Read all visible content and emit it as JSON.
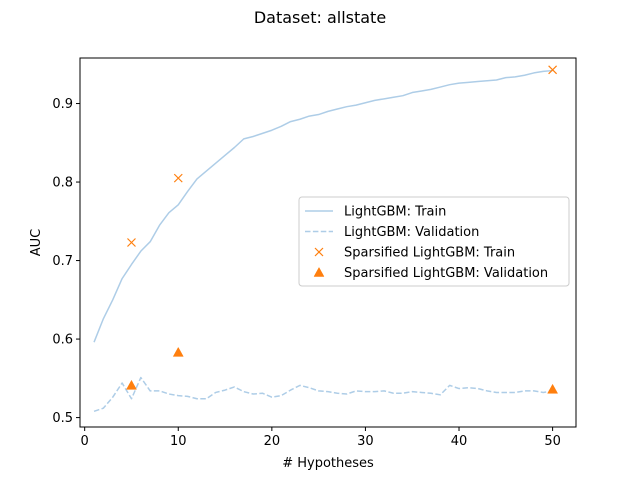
{
  "chart_data": {
    "type": "line",
    "title": "Dataset: allstate",
    "xlabel": "# Hypotheses",
    "ylabel": "AUC",
    "xlim": [
      -0.5,
      52.5
    ],
    "ylim": [
      0.488,
      0.958
    ],
    "xticks": [
      0,
      10,
      20,
      30,
      40,
      50
    ],
    "yticks": [
      0.5,
      0.6,
      0.7,
      0.8,
      0.9
    ],
    "xtick_labels": [
      "0",
      "10",
      "20",
      "30",
      "40",
      "50"
    ],
    "ytick_labels": [
      "0.5",
      "0.6",
      "0.7",
      "0.8",
      "0.9"
    ],
    "grid": false,
    "legend_position": "center-right",
    "series": [
      {
        "name": "LightGBM: Train",
        "kind": "line",
        "style": "solid",
        "color": "#aecde7",
        "x": [
          1,
          2,
          3,
          4,
          5,
          6,
          7,
          8,
          9,
          10,
          11,
          12,
          13,
          14,
          15,
          16,
          17,
          18,
          19,
          20,
          21,
          22,
          23,
          24,
          25,
          26,
          27,
          28,
          29,
          30,
          31,
          32,
          33,
          34,
          35,
          36,
          37,
          38,
          39,
          40,
          41,
          42,
          43,
          44,
          45,
          46,
          47,
          48,
          49,
          50
        ],
        "y": [
          0.596,
          0.626,
          0.65,
          0.677,
          0.695,
          0.712,
          0.724,
          0.745,
          0.761,
          0.771,
          0.788,
          0.804,
          0.814,
          0.824,
          0.834,
          0.844,
          0.855,
          0.858,
          0.862,
          0.866,
          0.871,
          0.877,
          0.88,
          0.884,
          0.886,
          0.89,
          0.893,
          0.896,
          0.898,
          0.901,
          0.904,
          0.906,
          0.908,
          0.91,
          0.914,
          0.916,
          0.918,
          0.921,
          0.924,
          0.926,
          0.927,
          0.928,
          0.929,
          0.93,
          0.933,
          0.934,
          0.936,
          0.939,
          0.941,
          0.942
        ]
      },
      {
        "name": "LightGBM: Validation",
        "kind": "line",
        "style": "dashed",
        "color": "#aecde7",
        "x": [
          1,
          2,
          3,
          4,
          5,
          6,
          7,
          8,
          9,
          10,
          11,
          12,
          13,
          14,
          15,
          16,
          17,
          18,
          19,
          20,
          21,
          22,
          23,
          24,
          25,
          26,
          27,
          28,
          29,
          30,
          31,
          32,
          33,
          34,
          35,
          36,
          37,
          38,
          39,
          40,
          41,
          42,
          43,
          44,
          45,
          46,
          47,
          48,
          49,
          50
        ],
        "y": [
          0.508,
          0.512,
          0.526,
          0.544,
          0.524,
          0.551,
          0.534,
          0.534,
          0.53,
          0.528,
          0.527,
          0.524,
          0.524,
          0.532,
          0.535,
          0.539,
          0.533,
          0.53,
          0.531,
          0.526,
          0.528,
          0.535,
          0.541,
          0.538,
          0.534,
          0.533,
          0.531,
          0.53,
          0.534,
          0.533,
          0.533,
          0.534,
          0.531,
          0.531,
          0.533,
          0.532,
          0.531,
          0.529,
          0.541,
          0.537,
          0.538,
          0.537,
          0.534,
          0.532,
          0.532,
          0.532,
          0.534,
          0.534,
          0.532,
          0.534
        ]
      },
      {
        "name": "Sparsified LightGBM: Train",
        "kind": "marker",
        "marker": "x",
        "color": "#ff7f0e",
        "x": [
          5,
          10,
          50
        ],
        "y": [
          0.723,
          0.805,
          0.943
        ]
      },
      {
        "name": "Sparsified LightGBM: Validation",
        "kind": "marker",
        "marker": "triangle",
        "color": "#ff7f0e",
        "x": [
          5,
          10,
          50
        ],
        "y": [
          0.541,
          0.583,
          0.536
        ]
      }
    ]
  }
}
